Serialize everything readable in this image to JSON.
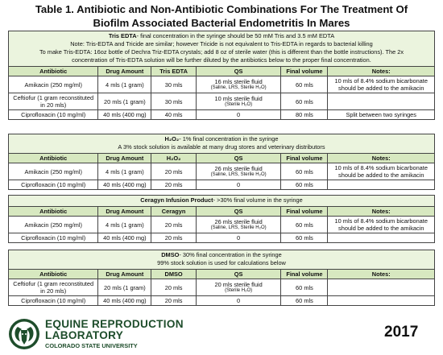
{
  "title": {
    "line1": "Table 1. Antibiotic and Non-Antibiotic Combinations For The Treatment Of",
    "line2": "Biofilm Associated Bacterial Endometritis In Mares"
  },
  "tris": {
    "head_bold": "Tris EDTA",
    "head_rest": "- final concentration in the syringe should be 50 mM Tris and 3.5 mM EDTA",
    "note1": "Note: Tris-EDTA and Tricide are similar; however Tricide is not equivalent to Tris-EDTA in regards to bacterial killing",
    "note2": "To make Tris-EDTA: 16oz bottle of Dechra Triz-EDTA crystals; add 8 oz of sterile water (this is different than the bottle instructions). The 2x",
    "note3": "concentration of Tris-EDTA solution will be further diluted by the antibiotics below to the proper final concentration.",
    "columns": [
      "Antibiotic",
      "Drug Amount",
      "Tris EDTA",
      "QS",
      "Final volume",
      "Notes:"
    ],
    "rows": [
      {
        "antibiotic": "Amikacin (250 mg/ml)",
        "drug": "4 mls (1 gram)",
        "agent": "30 mls",
        "qs": "16 mls sterile fluid",
        "qs_sub": "(Saline, LRS, Sterile H₂O)",
        "final": "60 mls",
        "notes": "10 mls of 8.4% sodium bicarbonate should be added to the amikacin"
      },
      {
        "antibiotic": "Ceftiofur (1 gram reconstituted in 20 mls)",
        "drug": "20 mls (1 gram)",
        "agent": "30 mls",
        "qs": "10 mls sterile fluid",
        "qs_sub": "(Sterile H₂O)",
        "final": "60 mls",
        "notes": ""
      },
      {
        "antibiotic": "Ciprofloxacin (10 mg/ml)",
        "drug": "40 mls (400 mg)",
        "agent": "40 mls",
        "qs": "0",
        "qs_sub": "",
        "final": "80 mls",
        "notes": "Split between two syringes"
      }
    ]
  },
  "h2o2": {
    "head_bold": "H₂O₂",
    "head_rest": "- 1% final concentration in the syringe",
    "note1": "A 3% stock solution is available at many drug stores and veterinary distributors",
    "columns": [
      "Antibiotic",
      "Drug Amount",
      "H₂O₂",
      "QS",
      "Final volume",
      "Notes:"
    ],
    "rows": [
      {
        "antibiotic": "Amikacin (250 mg/ml)",
        "drug": "4 mls (1 gram)",
        "agent": "20 mls",
        "qs": "26 mls sterile fluid",
        "qs_sub": "(Saline, LRS, Sterile H₂O)",
        "final": "60 mls",
        "notes": "10 mls of 8.4% sodium bicarbonate should be added to the amikacin"
      },
      {
        "antibiotic": "Ciprofloxacin (10 mg/ml)",
        "drug": "40 mls (400 mg)",
        "agent": "20 mls",
        "qs": "0",
        "qs_sub": "",
        "final": "60 mls",
        "notes": ""
      }
    ]
  },
  "ceragyn": {
    "head_bold": "Ceragyn Infusion Product",
    "head_rest": "- >30% final volume in the syringe",
    "columns": [
      "Antibiotic",
      "Drug Amount",
      "Ceragyn",
      "QS",
      "Final volume",
      "Notes:"
    ],
    "rows": [
      {
        "antibiotic": "Amikacin (250 mg/ml)",
        "drug": "4 mls (1 gram)",
        "agent": "20 mls",
        "qs": "26 mls sterile fluid",
        "qs_sub": "(Saline, LRS, Sterile H₂O)",
        "final": "60 mls",
        "notes": "10 mls of 8.4% sodium bicarbonate should be added to the amikacin"
      },
      {
        "antibiotic": "Ciprofloxacin (10 mg/ml)",
        "drug": "40 mls (400 mg)",
        "agent": "20 mls",
        "qs": "0",
        "qs_sub": "",
        "final": "60 mls",
        "notes": ""
      }
    ]
  },
  "dmso": {
    "head_bold": "DMSO",
    "head_rest": "- 30% final concentration in the syringe",
    "note1": "99% stock solution is used for calculations below",
    "columns": [
      "Antibiotic",
      "Drug Amount",
      "DMSO",
      "QS",
      "Final volume",
      "Notes:"
    ],
    "rows": [
      {
        "antibiotic": "Ceftiofur (1 gram reconstituted in 20 mls)",
        "drug": "20 mls (1 gram)",
        "agent": "20 mls",
        "qs": "20 mls sterile fluid",
        "qs_sub": "(Sterile H₂O)",
        "final": "60 mls",
        "notes": ""
      },
      {
        "antibiotic": "Ciprofloxacin (10 mg/ml)",
        "drug": "40 mls (400 mg)",
        "agent": "20 mls",
        "qs": "0",
        "qs_sub": "",
        "final": "60 mls",
        "notes": ""
      }
    ]
  },
  "footer": {
    "org_line1": "EQUINE REPRODUCTION",
    "org_line2": "LABORATORY",
    "university": "COLORADO STATE UNIVERSITY",
    "year": "2017",
    "brand_color": "#1e4d2b",
    "header_green": "#d7e8c0",
    "band_green": "#ebf4de"
  }
}
